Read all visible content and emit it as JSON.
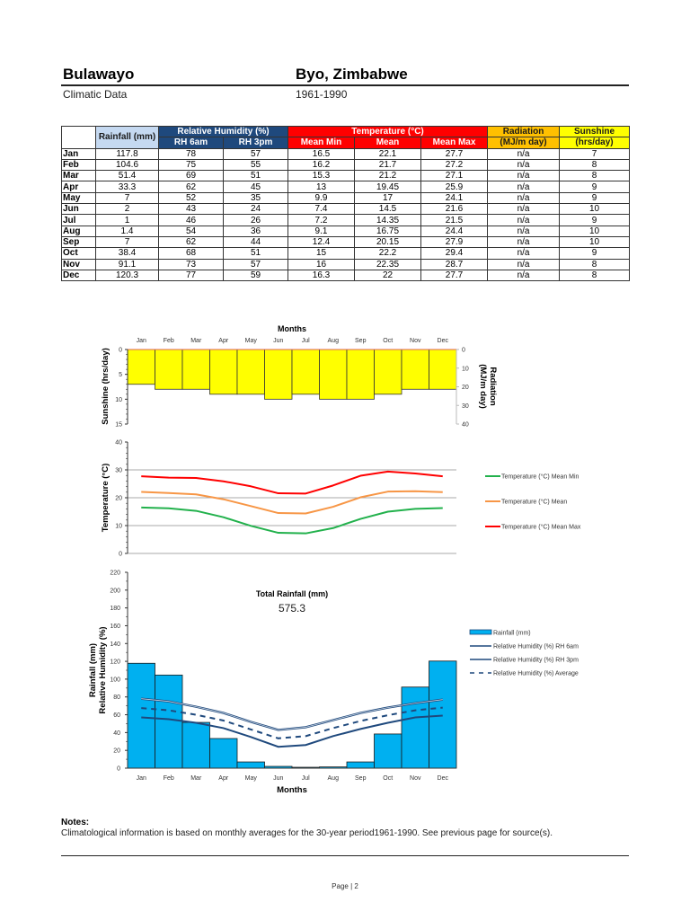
{
  "header": {
    "city": "Bulawayo",
    "location": "Byo, Zimbabwe",
    "subtitle": "Climatic Data",
    "period": "1961-1990"
  },
  "table": {
    "group_headers": {
      "rainfall": "Rainfall (mm)",
      "humidity": "Relative Humidity (%)",
      "temperature": "Temperature (°C)",
      "radiation": "Radiation",
      "radiation_unit": "(MJ/m day)",
      "sunshine": "Sunshine",
      "sunshine_unit": "(hrs/day)"
    },
    "sub_headers": {
      "rh6": "RH 6am",
      "rh3": "RH 3pm",
      "tmin": "Mean Min",
      "tmean": "Mean",
      "tmax": "Mean Max"
    },
    "rows": [
      {
        "month": "Jan",
        "rain": "117.8",
        "rh6": "78",
        "rh3": "57",
        "tmin": "16.5",
        "tmean": "22.1",
        "tmax": "27.7",
        "rad": "n/a",
        "sun": "7"
      },
      {
        "month": "Feb",
        "rain": "104.6",
        "rh6": "75",
        "rh3": "55",
        "tmin": "16.2",
        "tmean": "21.7",
        "tmax": "27.2",
        "rad": "n/a",
        "sun": "8"
      },
      {
        "month": "Mar",
        "rain": "51.4",
        "rh6": "69",
        "rh3": "51",
        "tmin": "15.3",
        "tmean": "21.2",
        "tmax": "27.1",
        "rad": "n/a",
        "sun": "8"
      },
      {
        "month": "Apr",
        "rain": "33.3",
        "rh6": "62",
        "rh3": "45",
        "tmin": "13",
        "tmean": "19.45",
        "tmax": "25.9",
        "rad": "n/a",
        "sun": "9"
      },
      {
        "month": "May",
        "rain": "7",
        "rh6": "52",
        "rh3": "35",
        "tmin": "9.9",
        "tmean": "17",
        "tmax": "24.1",
        "rad": "n/a",
        "sun": "9"
      },
      {
        "month": "Jun",
        "rain": "2",
        "rh6": "43",
        "rh3": "24",
        "tmin": "7.4",
        "tmean": "14.5",
        "tmax": "21.6",
        "rad": "n/a",
        "sun": "10"
      },
      {
        "month": "Jul",
        "rain": "1",
        "rh6": "46",
        "rh3": "26",
        "tmin": "7.2",
        "tmean": "14.35",
        "tmax": "21.5",
        "rad": "n/a",
        "sun": "9"
      },
      {
        "month": "Aug",
        "rain": "1.4",
        "rh6": "54",
        "rh3": "36",
        "tmin": "9.1",
        "tmean": "16.75",
        "tmax": "24.4",
        "rad": "n/a",
        "sun": "10"
      },
      {
        "month": "Sep",
        "rain": "7",
        "rh6": "62",
        "rh3": "44",
        "tmin": "12.4",
        "tmean": "20.15",
        "tmax": "27.9",
        "rad": "n/a",
        "sun": "10"
      },
      {
        "month": "Oct",
        "rain": "38.4",
        "rh6": "68",
        "rh3": "51",
        "tmin": "15",
        "tmean": "22.2",
        "tmax": "29.4",
        "rad": "n/a",
        "sun": "9"
      },
      {
        "month": "Nov",
        "rain": "91.1",
        "rh6": "73",
        "rh3": "57",
        "tmin": "16",
        "tmean": "22.35",
        "tmax": "28.7",
        "rad": "n/a",
        "sun": "8"
      },
      {
        "month": "Dec",
        "rain": "120.3",
        "rh6": "77",
        "rh3": "59",
        "tmin": "16.3",
        "tmean": "22",
        "tmax": "27.7",
        "rad": "n/a",
        "sun": "8"
      }
    ]
  },
  "colors": {
    "sunshine_bar": "#ffff00",
    "rain_bar": "#00b0f0",
    "rh_line": "#1f497d",
    "tmin": "#22b14c",
    "tmean": "#f79646",
    "tmax": "#ff0000",
    "header_rh": "#1f497d",
    "header_temp": "#ff0000",
    "header_rad": "#ffc000",
    "header_sun": "#ffff00",
    "header_rain": "#c5d9f1"
  },
  "chart_data": [
    {
      "type": "bar",
      "title": "Months",
      "categories": [
        "Jan",
        "Feb",
        "Mar",
        "Apr",
        "May",
        "Jun",
        "Jul",
        "Aug",
        "Sep",
        "Oct",
        "Nov",
        "Dec"
      ],
      "series": [
        {
          "name": "Sunshine (hrs/day)",
          "values": [
            7,
            8,
            8,
            9,
            9,
            10,
            9,
            10,
            10,
            9,
            8,
            8
          ]
        }
      ],
      "ylabel": "Sunshine (hrs/day)",
      "y2label": "Radiation (MJ/m day)",
      "ylim": [
        0,
        15
      ],
      "y2lim": [
        0,
        40
      ],
      "yticks": [
        "0",
        "5",
        "10",
        "15"
      ],
      "y2ticks": [
        "0",
        "10",
        "20",
        "30",
        "40"
      ],
      "inverted_y": true,
      "xaxis_position": "top"
    },
    {
      "type": "line",
      "categories": [
        "Jan",
        "Feb",
        "Mar",
        "Apr",
        "May",
        "Jun",
        "Jul",
        "Aug",
        "Sep",
        "Oct",
        "Nov",
        "Dec"
      ],
      "series": [
        {
          "name": "Temperature (°C) Mean Min",
          "values": [
            16.5,
            16.2,
            15.3,
            13,
            9.9,
            7.4,
            7.2,
            9.1,
            12.4,
            15,
            16,
            16.3
          ]
        },
        {
          "name": "Temperature (°C) Mean",
          "values": [
            22.1,
            21.7,
            21.2,
            19.45,
            17,
            14.5,
            14.35,
            16.75,
            20.15,
            22.2,
            22.35,
            22
          ]
        },
        {
          "name": "Temperature (°C) Mean Max",
          "values": [
            27.7,
            27.2,
            27.1,
            25.9,
            24.1,
            21.6,
            21.5,
            24.4,
            27.9,
            29.4,
            28.7,
            27.7
          ]
        }
      ],
      "ylabel": "Temperature (°C)",
      "ylim": [
        0,
        40
      ],
      "yticks": [
        "0",
        "10",
        "20",
        "30",
        "40"
      ],
      "grid": true,
      "legend_position": "right"
    },
    {
      "type": "bar",
      "title": "Total Rainfall (mm)",
      "annotation": "575.3",
      "categories": [
        "Jan",
        "Feb",
        "Mar",
        "Apr",
        "May",
        "Jun",
        "Jul",
        "Aug",
        "Sep",
        "Oct",
        "Nov",
        "Dec"
      ],
      "series": [
        {
          "name": "Rainfall (mm)",
          "type": "bar",
          "values": [
            117.8,
            104.6,
            51.4,
            33.3,
            7,
            2,
            1,
            1.4,
            7,
            38.4,
            91.1,
            120.3
          ]
        },
        {
          "name": "Relative Humidity (%) RH 6am",
          "type": "line",
          "values": [
            78,
            75,
            69,
            62,
            52,
            43,
            46,
            54,
            62,
            68,
            73,
            77
          ]
        },
        {
          "name": "Relative Humidity (%) RH 3pm",
          "type": "line",
          "values": [
            57,
            55,
            51,
            45,
            35,
            24,
            26,
            36,
            44,
            51,
            57,
            59
          ]
        },
        {
          "name": "Relative Humidity (%) Average",
          "type": "line-dashed",
          "values": [
            67.5,
            65,
            60,
            53.5,
            43.5,
            33.5,
            36,
            45,
            53,
            59.5,
            65,
            68
          ]
        }
      ],
      "xlabel": "Months",
      "ylabel": "Rainfall (mm) Relative Humidity (%)",
      "ylim": [
        0,
        220
      ],
      "yticks": [
        "0",
        "20",
        "40",
        "60",
        "80",
        "100",
        "120",
        "140",
        "160",
        "180",
        "200",
        "220"
      ],
      "legend_position": "right"
    }
  ],
  "charts": {
    "months_label": "Months",
    "months": [
      "Jan",
      "Feb",
      "Mar",
      "Apr",
      "May",
      "Jun",
      "Jul",
      "Aug",
      "Sep",
      "Oct",
      "Nov",
      "Dec"
    ],
    "sun_ylabel": "Sunshine (hrs/day)",
    "rad_ylabel_1": "Radiation",
    "rad_ylabel_2": "(MJ/m day)",
    "temp_ylabel": "Temperature (°C)",
    "temp_legend": [
      "Temperature (°C) Mean Min",
      "Temperature (°C) Mean",
      "Temperature (°C) Mean Max"
    ],
    "rain_ylabel_1": "Rainfall (mm)",
    "rain_ylabel_2": "Relative Humidity (%)",
    "rain_title": "Total Rainfall (mm)",
    "rain_total": "575.3",
    "rain_legend": [
      "Rainfall (mm)",
      "Relative Humidity (%) RH 6am",
      "Relative Humidity (%) RH 3pm",
      "Relative Humidity (%) Average"
    ]
  },
  "notes": {
    "heading": "Notes:",
    "text": "Climatological information is based on monthly averages for the 30-year period1961-1990. See previous page for source(s)."
  },
  "footer": {
    "page": "Page | 2"
  }
}
